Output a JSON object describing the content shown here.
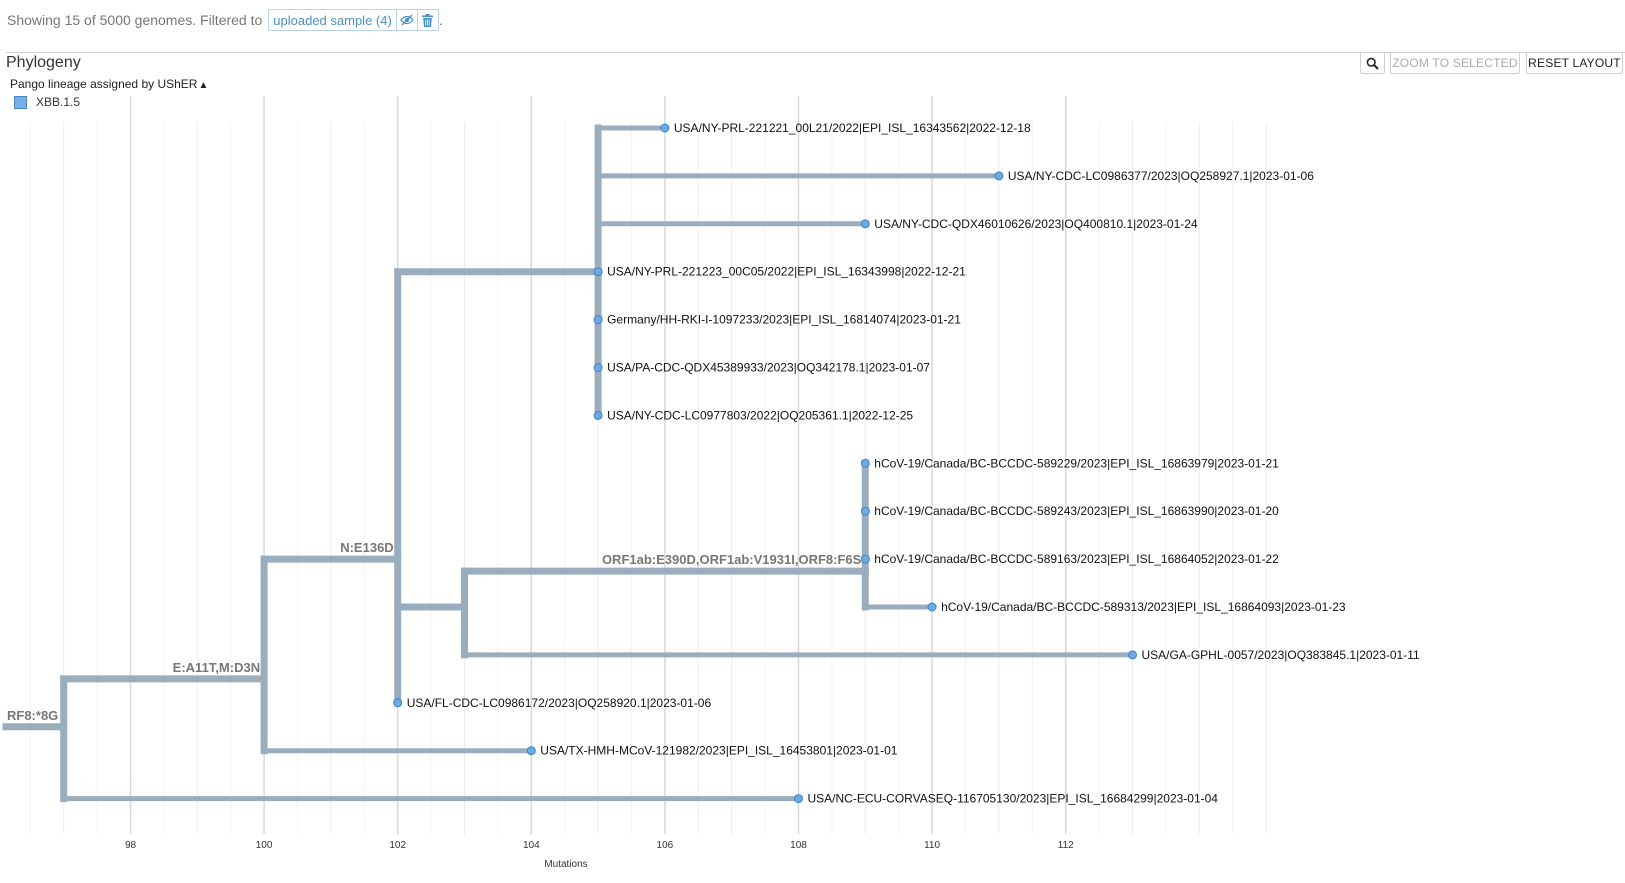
{
  "header": {
    "showing_text": "Showing 15 of 5000 genomes. Filtered to",
    "filter_chip_label": "uploaded sample (4)",
    "trailing_text": "."
  },
  "panel": {
    "title": "Phylogeny",
    "color_by_label": "Pango lineage assigned by UShER",
    "legend_entries": [
      {
        "label": "XBB.1.5",
        "color": "#7aaee6"
      }
    ],
    "buttons": {
      "zoom_to_selected": "ZOOM TO SELECTED",
      "reset_layout": "RESET LAYOUT"
    }
  },
  "colors": {
    "branch": "#9aadbd",
    "tip": "#6aaae6",
    "tip_stroke": "#3f82c4",
    "grid": "#e6e6e6"
  },
  "chart_data": {
    "type": "phylogenetic-tree",
    "xlabel": "Mutations",
    "xlim": [
      95.5,
      115.3
    ],
    "x_ticks": [
      98,
      100,
      102,
      104,
      106,
      108,
      110,
      112
    ],
    "branch_labels": [
      {
        "text": "RF8:*8G",
        "node": "root"
      },
      {
        "text": "E:A11T,M:D3N",
        "node": "n1"
      },
      {
        "text": "N:E136D",
        "node": "n2"
      },
      {
        "text": "ORF1ab:E390D,ORF1ab:V1931I,ORF8:F6S",
        "node": "n5"
      }
    ],
    "nodes": [
      {
        "id": "root",
        "x": 97,
        "y": 12.5
      },
      {
        "id": "n1",
        "parent": "root",
        "x": 100,
        "y": 11.5
      },
      {
        "id": "n2",
        "parent": "n1",
        "x": 102,
        "y": 9.0
      },
      {
        "id": "n3",
        "parent": "n2",
        "x": 105,
        "y": 3.0
      },
      {
        "id": "n4",
        "parent": "n2",
        "x": 103,
        "y": 10.0
      },
      {
        "id": "n5",
        "parent": "n4",
        "x": 109,
        "y": 9.25
      }
    ],
    "tips": [
      {
        "name": "USA/NY-PRL-221221_00L21/2022|EPI_ISL_16343562|2022-12-18",
        "parent": "n3",
        "x": 106,
        "y": 0
      },
      {
        "name": "USA/NY-CDC-LC0986377/2023|OQ258927.1|2023-01-06",
        "parent": "n3",
        "x": 111,
        "y": 1
      },
      {
        "name": "USA/NY-CDC-QDX46010626/2023|OQ400810.1|2023-01-24",
        "parent": "n3",
        "x": 109,
        "y": 2
      },
      {
        "name": "USA/NY-PRL-221223_00C05/2022|EPI_ISL_16343998|2022-12-21",
        "parent": "n3",
        "x": 105,
        "y": 3
      },
      {
        "name": "Germany/HH-RKI-I-1097233/2023|EPI_ISL_16814074|2023-01-21",
        "parent": "n3",
        "x": 105,
        "y": 4
      },
      {
        "name": "USA/PA-CDC-QDX45389933/2023|OQ342178.1|2023-01-07",
        "parent": "n3",
        "x": 105,
        "y": 5
      },
      {
        "name": "USA/NY-CDC-LC0977803/2022|OQ205361.1|2022-12-25",
        "parent": "n3",
        "x": 105,
        "y": 6
      },
      {
        "name": "hCoV-19/Canada/BC-BCCDC-589229/2023|EPI_ISL_16863979|2023-01-21",
        "parent": "n5",
        "x": 109,
        "y": 7
      },
      {
        "name": "hCoV-19/Canada/BC-BCCDC-589243/2023|EPI_ISL_16863990|2023-01-20",
        "parent": "n5",
        "x": 109,
        "y": 8
      },
      {
        "name": "hCoV-19/Canada/BC-BCCDC-589163/2023|EPI_ISL_16864052|2023-01-22",
        "parent": "n5",
        "x": 109,
        "y": 9
      },
      {
        "name": "hCoV-19/Canada/BC-BCCDC-589313/2023|EPI_ISL_16864093|2023-01-23",
        "parent": "n5",
        "x": 110,
        "y": 10
      },
      {
        "name": "USA/GA-GPHL-0057/2023|OQ383845.1|2023-01-11",
        "parent": "n4",
        "x": 113,
        "y": 11
      },
      {
        "name": "USA/FL-CDC-LC0986172/2023|OQ258920.1|2023-01-06",
        "parent": "n2",
        "x": 102,
        "y": 12
      },
      {
        "name": "USA/TX-HMH-MCoV-121982/2023|EPI_ISL_16453801|2023-01-01",
        "parent": "n1",
        "x": 104,
        "y": 13
      },
      {
        "name": "USA/NC-ECU-CORVASEQ-116705130/2023|EPI_ISL_16684299|2023-01-04",
        "parent": "root",
        "x": 108,
        "y": 14
      }
    ]
  }
}
